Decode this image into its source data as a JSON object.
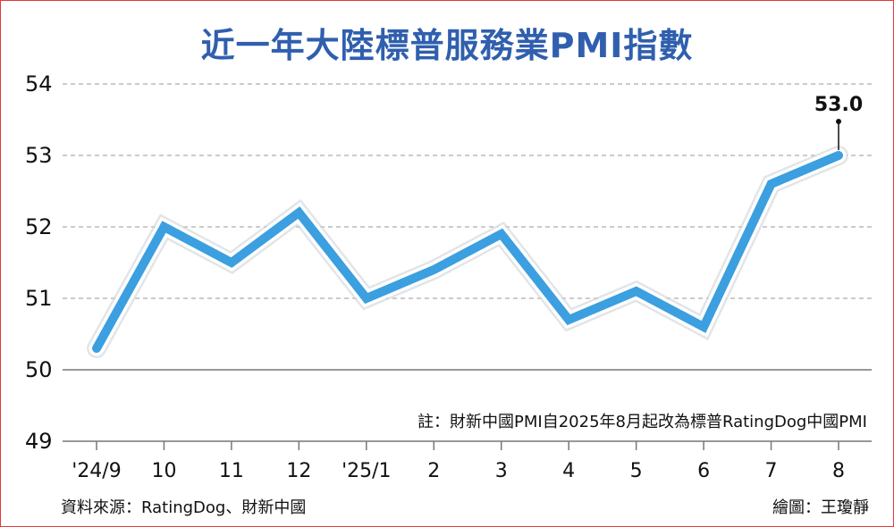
{
  "chart_data": {
    "type": "line",
    "title": "近一年大陸標普服務業PMI指數",
    "categories": [
      "'24/9",
      "10",
      "11",
      "12",
      "'25/1",
      "2",
      "3",
      "4",
      "5",
      "6",
      "7",
      "8"
    ],
    "series": [
      {
        "values": [
          50.3,
          52.0,
          51.5,
          52.2,
          51.0,
          51.4,
          51.9,
          50.7,
          51.1,
          50.6,
          52.6,
          53.0
        ]
      }
    ],
    "ylim": [
      49,
      54
    ],
    "yticks": [
      "49",
      "50",
      "51",
      "52",
      "53",
      "54"
    ],
    "grid": true,
    "highlight_label": "53.0",
    "note": "註：財新中國PMI自2025年8月起改為標普RatingDog中國PMI",
    "source": "資料來源：RatingDog、財新中國",
    "credit": "繪圖：王瓊靜",
    "colors": {
      "line": "#3b9fe0",
      "title": "#2f5fae",
      "frame": "#e53935",
      "grid": "#999999"
    }
  }
}
